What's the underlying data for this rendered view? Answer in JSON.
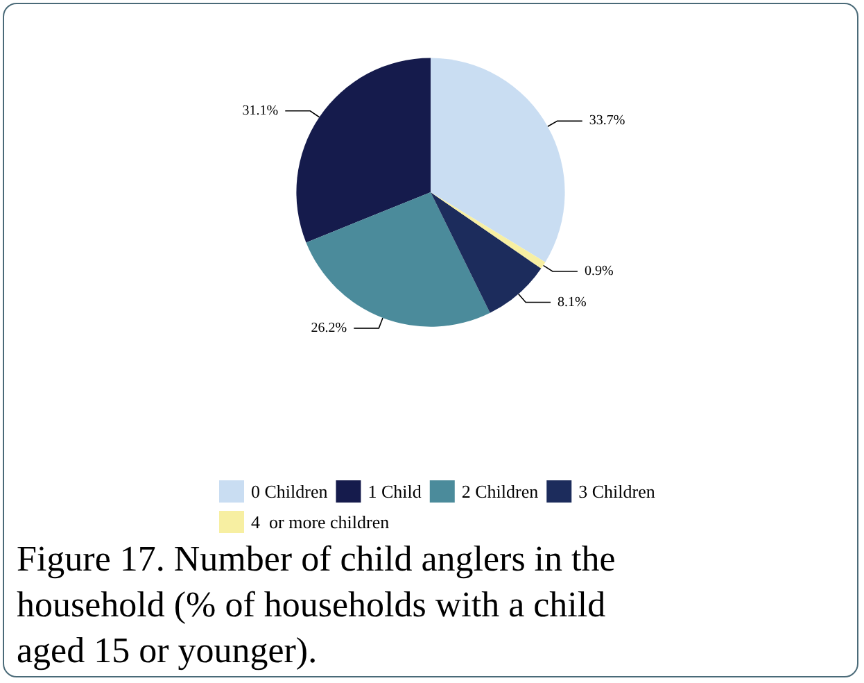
{
  "chart_data": {
    "type": "pie",
    "title": "Figure 17. Number of child anglers in the household (% of households with a child aged 15 or younger).",
    "categories": [
      "0 Children",
      "1 Child",
      "2 Children",
      "3 Children",
      "4  or more children"
    ],
    "values": [
      33.7,
      31.1,
      26.2,
      8.1,
      0.9
    ],
    "colors": [
      "#c9ddf2",
      "#151b4c",
      "#4b8b9b",
      "#1c2c5c",
      "#f7efa2"
    ],
    "value_labels": [
      "33.7%",
      "31.1%",
      "26.2%",
      "8.1%",
      "0.9%"
    ],
    "legend": "bottom"
  }
}
